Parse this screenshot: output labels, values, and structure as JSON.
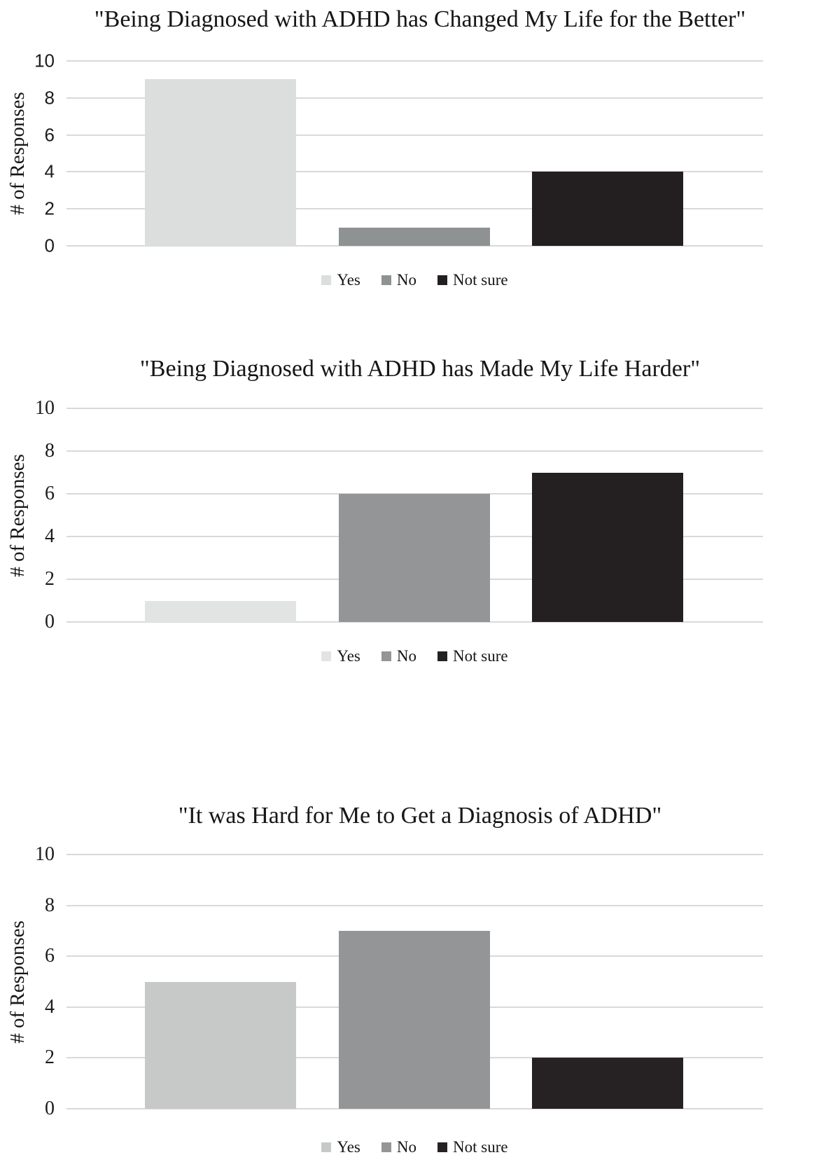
{
  "page": {
    "background": "#ffffff",
    "text_color": "#1f1f1f",
    "gridline_color": "#d9d9d9"
  },
  "chart_data": [
    {
      "type": "bar",
      "title": "\"Being Diagnosed with ADHD has Changed My Life for the Better\"",
      "ylabel": "# of Responses",
      "xlabel": "",
      "categories": [
        "Yes",
        "No",
        "Not sure"
      ],
      "values": [
        9,
        1,
        4
      ],
      "colors": [
        "#dcdede",
        "#8f9293",
        "#231f20"
      ],
      "ylim": [
        0,
        10
      ],
      "yticks": [
        10,
        8,
        6,
        4,
        2,
        0
      ],
      "grid": true,
      "legend_position": "bottom",
      "legend": [
        "Yes",
        "No",
        "Not sure"
      ]
    },
    {
      "type": "bar",
      "title": "\"Being Diagnosed with ADHD has Made My Life Harder\"",
      "ylabel": "# of Responses",
      "xlabel": "",
      "categories": [
        "Yes",
        "No",
        "Not sure"
      ],
      "values": [
        1,
        6,
        7
      ],
      "colors": [
        "#e2e4e4",
        "#939597",
        "#242021"
      ],
      "ylim": [
        0,
        10
      ],
      "yticks": [
        10,
        8,
        6,
        4,
        2,
        0
      ],
      "grid": true,
      "legend_position": "bottom",
      "legend": [
        "Yes",
        "No",
        "Not sure"
      ]
    },
    {
      "type": "bar",
      "title": "\"It was Hard for Me to Get a Diagnosis of ADHD\"",
      "ylabel": "# of Responses",
      "xlabel": "",
      "categories": [
        "Yes",
        "No",
        "Not sure"
      ],
      "values": [
        5,
        7,
        2
      ],
      "colors": [
        "#c7c9c9",
        "#939596",
        "#262223"
      ],
      "ylim": [
        0,
        10
      ],
      "yticks": [
        10,
        8,
        6,
        4,
        2,
        0
      ],
      "grid": true,
      "legend_position": "bottom",
      "legend": [
        "Yes",
        "No",
        "Not sure"
      ]
    }
  ]
}
